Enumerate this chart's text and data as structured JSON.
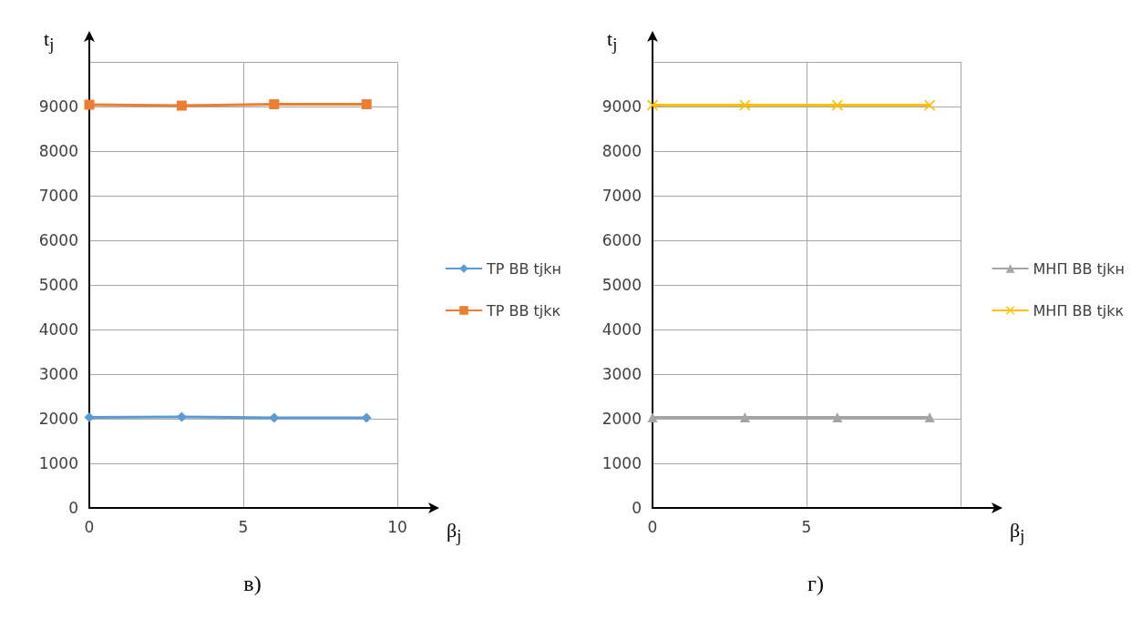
{
  "chart_data": [
    {
      "type": "line",
      "xlabel": "β$_{j}$",
      "ylabel": "t$_{j}$",
      "x": [
        0,
        3,
        6,
        9
      ],
      "xlim": [
        0,
        10
      ],
      "xticks": [
        0,
        5,
        10
      ],
      "ylim": [
        0,
        10000
      ],
      "yticks": [
        0,
        1000,
        2000,
        3000,
        4000,
        5000,
        6000,
        7000,
        8000,
        9000,
        {
          "value": 10000,
          "label": null
        }
      ],
      "grid": true,
      "legend": "right",
      "annotations": [
        "в)"
      ],
      "series": [
        {
          "name": "ТР ВВ tjkн",
          "color": "#5b9bd5",
          "marker": "diamond",
          "values": [
            2030,
            2040,
            2020,
            2020
          ]
        },
        {
          "name": "ТР ВВ tjkк",
          "color": "#ed7d31",
          "marker": "square",
          "values": [
            9040,
            9020,
            9050,
            9050
          ]
        }
      ]
    },
    {
      "type": "line",
      "xlabel": "β$_{j}$",
      "ylabel": "t$_{j}$",
      "x": [
        0,
        3,
        6,
        9
      ],
      "xlim": [
        0,
        10
      ],
      "xticks": [
        0,
        5,
        {
          "value": 10,
          "label": null
        }
      ],
      "ylim": [
        0,
        10000
      ],
      "yticks": [
        0,
        1000,
        2000,
        3000,
        4000,
        5000,
        6000,
        7000,
        8000,
        9000,
        {
          "value": 10000,
          "label": null
        }
      ],
      "grid": true,
      "legend": "right",
      "annotations": [
        "г)"
      ],
      "series": [
        {
          "name": "МНП ВВ tjkн",
          "color": "#a5a5a5",
          "marker": "triangle",
          "values": [
            2030,
            2030,
            2030,
            2030
          ]
        },
        {
          "name": "МНП ВВ tjkк",
          "color": "#ffc000",
          "marker": "cross",
          "values": [
            9030,
            9030,
            9030,
            9030
          ]
        }
      ]
    }
  ]
}
